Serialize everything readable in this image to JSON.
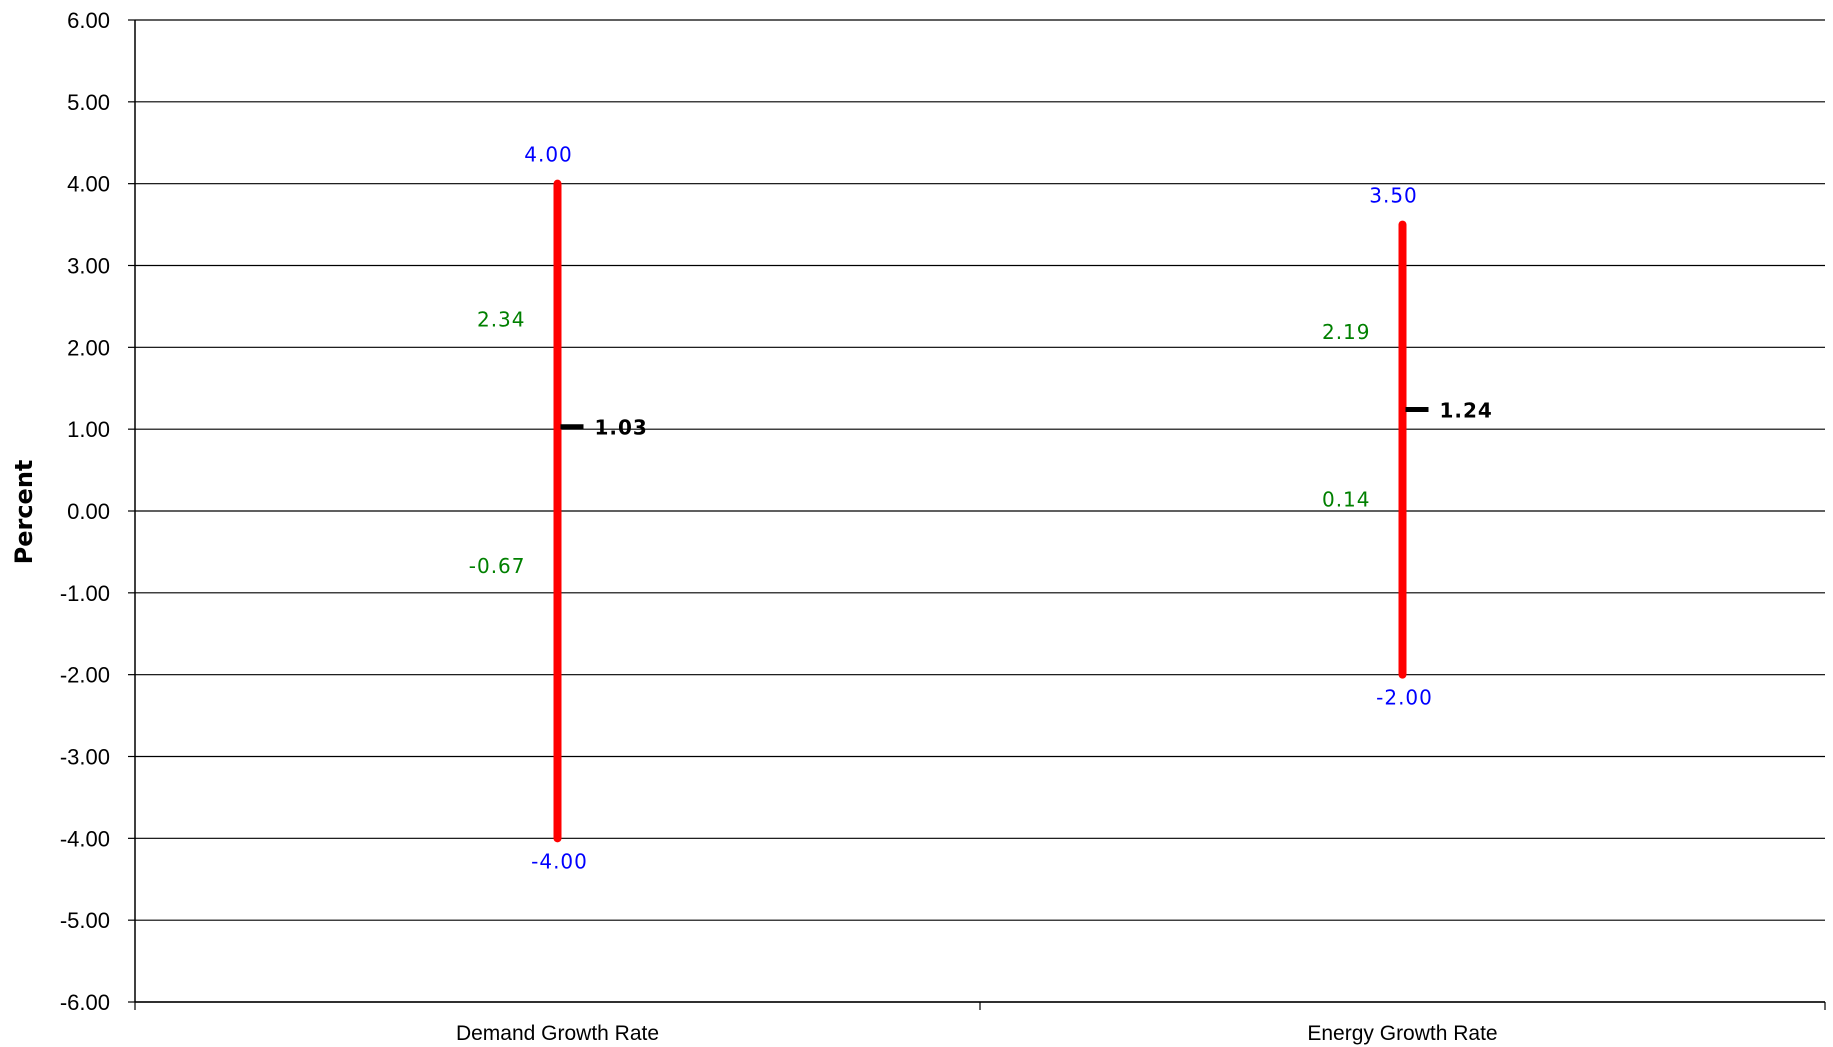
{
  "chart_data": {
    "type": "range",
    "ylabel": "Percent",
    "xlabel": "",
    "ylim": [
      -6,
      6
    ],
    "y_ticks": [
      "6.00",
      "5.00",
      "4.00",
      "3.00",
      "2.00",
      "1.00",
      "0.00",
      "-1.00",
      "-2.00",
      "-3.00",
      "-4.00",
      "-5.00",
      "-6.00"
    ],
    "grid": true,
    "categories": [
      "Demand Growth Rate",
      "Energy Growth Rate"
    ],
    "series": [
      {
        "category": "Demand Growth Rate",
        "max": 4.0,
        "max_label": "4.00",
        "min": -4.0,
        "min_label": "-4.00",
        "upper_inner": 2.34,
        "upper_inner_label": "2.34",
        "lower_inner": -0.67,
        "lower_inner_label": "-0.67",
        "mean": 1.03,
        "mean_label": "1.03"
      },
      {
        "category": "Energy Growth Rate",
        "max": 3.5,
        "max_label": "3.50",
        "min": -2.0,
        "min_label": "-2.00",
        "upper_inner": 2.19,
        "upper_inner_label": "2.19",
        "lower_inner": 0.14,
        "lower_inner_label": "0.14",
        "mean": 1.24,
        "mean_label": "1.24"
      }
    ],
    "colors": {
      "range_bar": "#ff0000",
      "extreme_labels": "#0000ff",
      "inner_labels": "#008000",
      "mean_marker": "#000000",
      "gridline": "#000000"
    }
  }
}
